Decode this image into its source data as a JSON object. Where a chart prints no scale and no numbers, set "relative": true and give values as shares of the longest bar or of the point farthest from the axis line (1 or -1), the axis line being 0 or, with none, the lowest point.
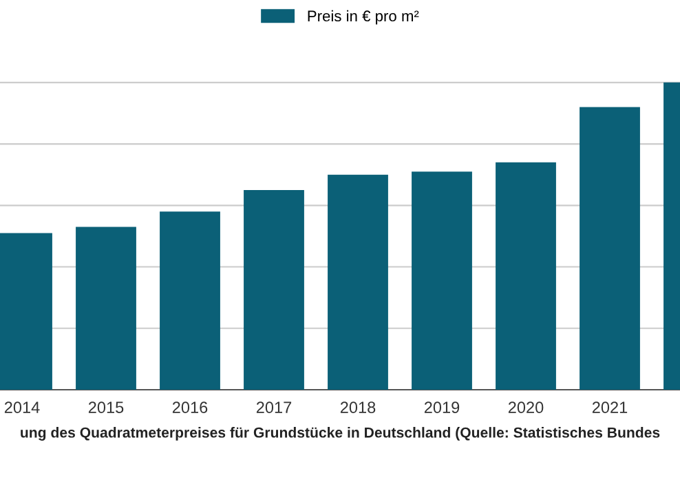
{
  "chart_data": {
    "type": "bar",
    "relative": true,
    "categories": [
      "2014",
      "2015",
      "2016",
      "2017",
      "2018",
      "2019",
      "2020",
      "2021",
      null
    ],
    "series": [
      {
        "name": "Preis in € pro m²",
        "color": "#0b6077",
        "values": [
          0.51,
          0.53,
          0.58,
          0.65,
          0.7,
          0.71,
          0.74,
          0.92,
          1
        ]
      }
    ],
    "grid": "y",
    "legend": "top",
    "annotations": [
      "ung des Quadratmeterpreises für Grundstücke in Deutschland (Quelle: Statistisches Bundes"
    ]
  }
}
